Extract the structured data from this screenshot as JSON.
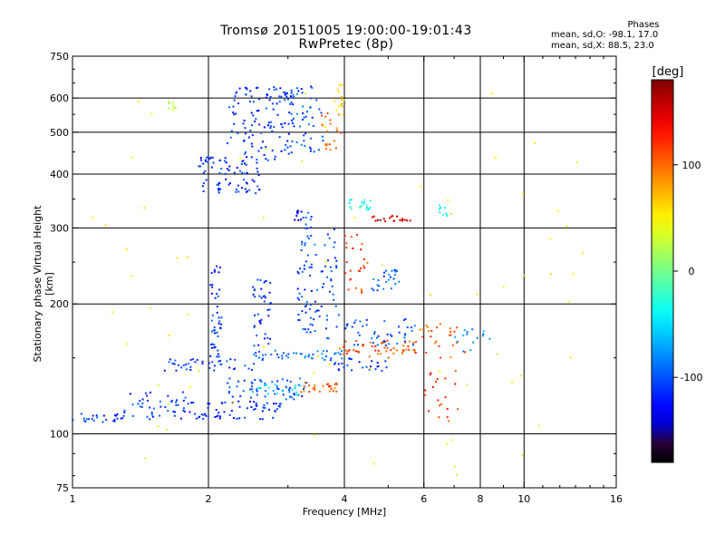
{
  "chart_data": {
    "type": "scatter",
    "title": "Tromsø 20151005 19:00:00-19:01:43",
    "subtitle": "RwPretec (8p)",
    "xlabel": "Frequency [MHz]",
    "ylabel": "Stationary phase Virtual Height [km]",
    "x_scale": "log",
    "y_scale": "log",
    "xlim": [
      1,
      16
    ],
    "ylim": [
      75,
      750
    ],
    "x_ticks": [
      1,
      2,
      4,
      6,
      8,
      10,
      16
    ],
    "y_ticks": [
      75,
      100,
      200,
      300,
      400,
      500,
      600,
      750
    ],
    "x_grid": [
      2,
      4,
      6,
      8,
      10
    ],
    "y_grid": [
      100,
      200,
      300,
      400,
      500,
      600
    ],
    "grid": true,
    "colorbar": {
      "label": "[deg]",
      "range": [
        -180,
        180
      ],
      "ticks": [
        100,
        0,
        -100
      ]
    },
    "phase_stats": {
      "header": "Phases",
      "line_o": "mean, sd,O: -98.1, 17.0",
      "line_x": "mean, sd,X:  88.5, 23.0"
    },
    "clusters": [
      {
        "x": [
          1.0,
          1.3
        ],
        "y": [
          106,
          112
        ],
        "phase": -110,
        "n": 25
      },
      {
        "x": [
          1.3,
          1.9
        ],
        "y": [
          108,
          125
        ],
        "phase": -110,
        "n": 50
      },
      {
        "x": [
          1.9,
          2.9
        ],
        "y": [
          108,
          120
        ],
        "phase": -115,
        "n": 60
      },
      {
        "x": [
          2.2,
          3.3
        ],
        "y": [
          120,
          135
        ],
        "phase": -100,
        "n": 55
      },
      {
        "x": [
          2.5,
          3.2
        ],
        "y": [
          123,
          130
        ],
        "phase": -60,
        "n": 20
      },
      {
        "x": [
          3.2,
          3.9
        ],
        "y": [
          125,
          132
        ],
        "phase": 100,
        "n": 25
      },
      {
        "x": [
          1.6,
          2.6
        ],
        "y": [
          140,
          150
        ],
        "phase": -105,
        "n": 40
      },
      {
        "x": [
          2.5,
          4.0
        ],
        "y": [
          148,
          156
        ],
        "phase": -90,
        "n": 45
      },
      {
        "x": [
          3.9,
          5.9
        ],
        "y": [
          150,
          165
        ],
        "phase": 110,
        "n": 55
      },
      {
        "x": [
          3.8,
          5.0
        ],
        "y": [
          140,
          150
        ],
        "phase": -110,
        "n": 25
      },
      {
        "x": [
          4.0,
          5.8
        ],
        "y": [
          160,
          185
        ],
        "phase": -100,
        "n": 45
      },
      {
        "x": [
          5.8,
          7.4
        ],
        "y": [
          150,
          180
        ],
        "phase": 105,
        "n": 25
      },
      {
        "x": [
          7.0,
          8.4
        ],
        "y": [
          155,
          175
        ],
        "phase": -80,
        "n": 15
      },
      {
        "x": [
          2.02,
          2.14
        ],
        "y": [
          150,
          250
        ],
        "phase": -110,
        "n": 45
      },
      {
        "x": [
          2.5,
          2.75
        ],
        "y": [
          160,
          230
        ],
        "phase": -110,
        "n": 40
      },
      {
        "x": [
          3.15,
          3.4
        ],
        "y": [
          170,
          330
        ],
        "phase": -105,
        "n": 55
      },
      {
        "x": [
          3.4,
          3.9
        ],
        "y": [
          165,
          300
        ],
        "phase": -100,
        "n": 45
      },
      {
        "x": [
          4.0,
          4.5
        ],
        "y": [
          210,
          290
        ],
        "phase": 115,
        "n": 25
      },
      {
        "x": [
          4.6,
          5.4
        ],
        "y": [
          215,
          240
        ],
        "phase": -95,
        "n": 25
      },
      {
        "x": [
          1.9,
          2.6
        ],
        "y": [
          360,
          440
        ],
        "phase": -115,
        "n": 80
      },
      {
        "x": [
          2.2,
          3.1
        ],
        "y": [
          430,
          640
        ],
        "phase": -110,
        "n": 120
      },
      {
        "x": [
          3.0,
          3.6
        ],
        "y": [
          450,
          640
        ],
        "phase": -100,
        "n": 45
      },
      {
        "x": [
          3.5,
          3.95
        ],
        "y": [
          450,
          560
        ],
        "phase": 100,
        "n": 20
      },
      {
        "x": [
          3.8,
          4.0
        ],
        "y": [
          540,
          650
        ],
        "phase": 60,
        "n": 15
      },
      {
        "x": [
          4.1,
          4.6
        ],
        "y": [
          330,
          350
        ],
        "phase": -30,
        "n": 20
      },
      {
        "x": [
          4.6,
          5.6
        ],
        "y": [
          310,
          320
        ],
        "phase": 150,
        "n": 20
      },
      {
        "x": [
          3.1,
          3.3
        ],
        "y": [
          310,
          330
        ],
        "phase": -150,
        "n": 8
      },
      {
        "x": [
          1.62,
          1.7
        ],
        "y": [
          560,
          590
        ],
        "phase": 30,
        "n": 8
      },
      {
        "x": [
          6.4,
          7.0
        ],
        "y": [
          320,
          360
        ],
        "phase": -40,
        "n": 8
      },
      {
        "x": [
          6.0,
          7.2
        ],
        "y": [
          100,
          140
        ],
        "phase": 120,
        "n": 20
      },
      {
        "x": [
          1.1,
          14.0
        ],
        "y": [
          80,
          620
        ],
        "phase": 40,
        "n": 70
      }
    ]
  }
}
